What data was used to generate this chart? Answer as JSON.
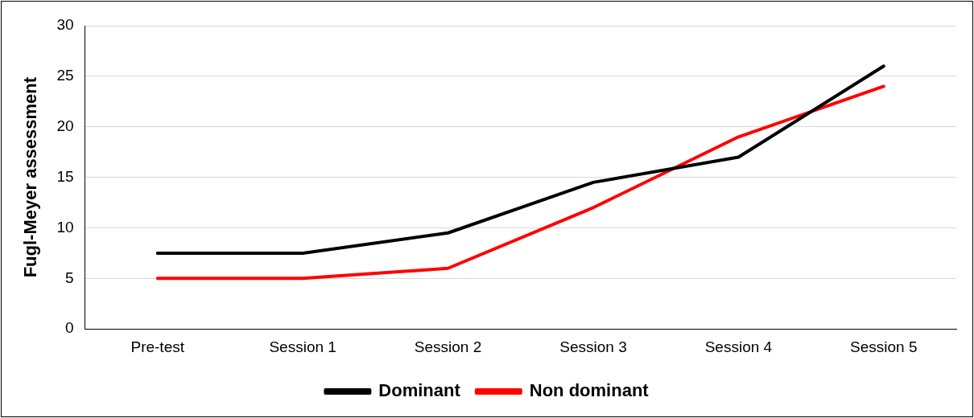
{
  "chart_data": {
    "type": "line",
    "ylabel": "Fugl-Meyer assessment",
    "categories": [
      "Pre-test",
      "Session 1",
      "Session 2",
      "Session 3",
      "Session 4",
      "Session 5"
    ],
    "series": [
      {
        "name": "Dominant",
        "color": "#000000",
        "values": [
          7.5,
          7.5,
          9.5,
          14.5,
          17,
          26
        ]
      },
      {
        "name": "Non dominant",
        "color": "#ff0000",
        "values": [
          5,
          5,
          6,
          12,
          19,
          24
        ]
      }
    ],
    "ylim": [
      0,
      30
    ],
    "yticks": [
      0,
      5,
      10,
      15,
      20,
      25,
      30
    ],
    "grid": "y",
    "legend": "bottom",
    "marker": "none",
    "line_style": "solid"
  }
}
